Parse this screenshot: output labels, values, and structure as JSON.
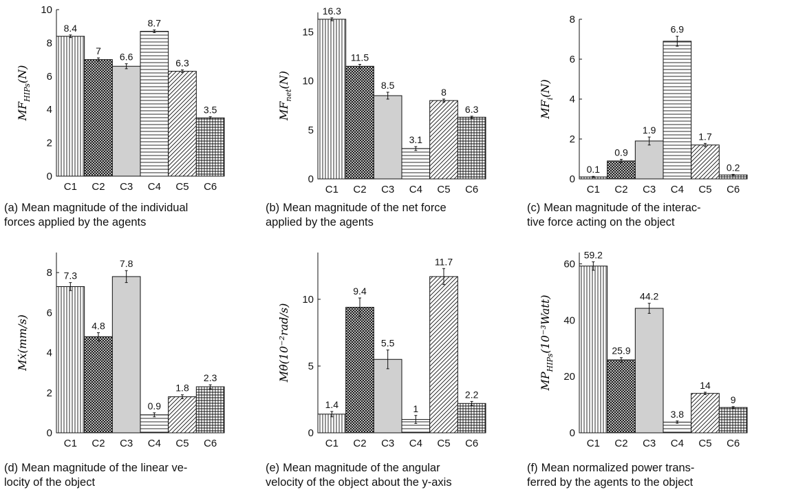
{
  "figures": [
    {
      "id": "a",
      "caption_label": "(a)",
      "caption_lines": [
        "Mean magnitude of the individual",
        "forces applied by the agents"
      ],
      "ylabel_main": "MF",
      "ylabel_sub": "HIPs",
      "ylabel_tail": "(N)"
    },
    {
      "id": "b",
      "caption_label": "(b)",
      "caption_lines": [
        "Mean magnitude of the net force",
        "applied by the agents"
      ],
      "ylabel_main": "MF",
      "ylabel_sub": "net",
      "ylabel_tail": "(N)"
    },
    {
      "id": "c",
      "caption_label": "(c)",
      "caption_lines": [
        "Mean magnitude of the interac-",
        "tive force acting on the object"
      ],
      "ylabel_main": "MF",
      "ylabel_sub": "i",
      "ylabel_tail": "(N)"
    },
    {
      "id": "d",
      "caption_label": "(d)",
      "caption_lines": [
        "Mean magnitude of the linear ve-",
        "locity of the object"
      ],
      "ylabel_main": "Mẋ(mm/s)",
      "ylabel_sub": "",
      "ylabel_tail": ""
    },
    {
      "id": "e",
      "caption_label": "(e)",
      "caption_lines": [
        "Mean magnitude of the angular",
        "velocity of the object about the y-axis"
      ],
      "ylabel_main": "Mθ̇(10⁻²rad/s)",
      "ylabel_sub": "",
      "ylabel_tail": ""
    },
    {
      "id": "f",
      "caption_label": "(f)",
      "caption_lines": [
        "Mean normalized power trans-",
        "ferred by the agents to the object"
      ],
      "ylabel_main": "MP",
      "ylabel_sub": "HIPs",
      "ylabel_tail": "(10⁻³Watt)"
    }
  ],
  "colors": {
    "gray_fill": "#d0d0d0",
    "ink": "#111111",
    "background": "#ffffff"
  },
  "patterns": [
    "vertical-lines",
    "crosshatch-dense",
    "solid-gray",
    "horizontal-lines",
    "diagonal-lines",
    "grid"
  ],
  "chart_data": [
    {
      "type": "bar",
      "categories": [
        "C1",
        "C2",
        "C3",
        "C4",
        "C5",
        "C6"
      ],
      "values": [
        8.4,
        7,
        6.6,
        8.7,
        6.3,
        3.5
      ],
      "labels": [
        "8.4",
        "7",
        "6.6",
        "8.7",
        "6.3",
        "3.5"
      ],
      "errors": [
        0.08,
        0.1,
        0.15,
        0.08,
        0.08,
        0.07
      ],
      "ylim": [
        0,
        10
      ],
      "yticks": [
        0,
        2,
        4,
        6,
        8,
        10
      ],
      "ylabel": "MF_HIPs(N)",
      "grid": false
    },
    {
      "type": "bar",
      "categories": [
        "C1",
        "C2",
        "C3",
        "C4",
        "C5",
        "C6"
      ],
      "values": [
        16.3,
        11.5,
        8.5,
        3.1,
        8,
        6.3
      ],
      "labels": [
        "16.3",
        "11.5",
        "8.5",
        "3.1",
        "8",
        "6.3"
      ],
      "errors": [
        0.15,
        0.2,
        0.35,
        0.2,
        0.15,
        0.1
      ],
      "ylim": [
        0,
        17
      ],
      "yticks": [
        0,
        5,
        10,
        15
      ],
      "ylabel": "MF_net(N)",
      "grid": false
    },
    {
      "type": "bar",
      "categories": [
        "C1",
        "C2",
        "C3",
        "C4",
        "C5",
        "C6"
      ],
      "values": [
        0.1,
        0.9,
        1.9,
        6.9,
        1.7,
        0.2
      ],
      "labels": [
        "0.1",
        "0.9",
        "1.9",
        "6.9",
        "1.7",
        "0.2"
      ],
      "errors": [
        0.03,
        0.08,
        0.2,
        0.25,
        0.08,
        0.03
      ],
      "ylim": [
        0,
        8
      ],
      "yticks": [
        0,
        2,
        4,
        6,
        8
      ],
      "ylabel": "MF_i(N)",
      "grid": false
    },
    {
      "type": "bar",
      "categories": [
        "C1",
        "C2",
        "C3",
        "C4",
        "C5",
        "C6"
      ],
      "values": [
        7.3,
        4.8,
        7.8,
        0.9,
        1.8,
        2.3
      ],
      "labels": [
        "7.3",
        "4.8",
        "7.8",
        "0.9",
        "1.8",
        "2.3"
      ],
      "errors": [
        0.2,
        0.2,
        0.3,
        0.1,
        0.1,
        0.1
      ],
      "ylim": [
        0,
        9
      ],
      "yticks": [
        0,
        2,
        4,
        6,
        8
      ],
      "ylabel": "Mẋ(mm/s)",
      "grid": false
    },
    {
      "type": "bar",
      "categories": [
        "C1",
        "C2",
        "C3",
        "C4",
        "C5",
        "C6"
      ],
      "values": [
        1.4,
        9.4,
        5.5,
        1,
        11.7,
        2.2
      ],
      "labels": [
        "1.4",
        "9.4",
        "5.5",
        "1",
        "11.7",
        "2.2"
      ],
      "errors": [
        0.2,
        0.7,
        0.7,
        0.3,
        0.6,
        0.15
      ],
      "ylim": [
        0,
        13.5
      ],
      "yticks": [
        0,
        5,
        10
      ],
      "ylabel": "Mθ̇(10⁻²rad/s)",
      "grid": false
    },
    {
      "type": "bar",
      "categories": [
        "C1",
        "C2",
        "C3",
        "C4",
        "C5",
        "C6"
      ],
      "values": [
        59.2,
        25.9,
        44.2,
        3.8,
        14,
        9
      ],
      "labels": [
        "59.2",
        "25.9",
        "44.2",
        "3.8",
        "14",
        "9"
      ],
      "errors": [
        1.5,
        0.8,
        1.8,
        0.4,
        0.4,
        0.3
      ],
      "ylim": [
        0,
        64
      ],
      "yticks": [
        0,
        20,
        40,
        60
      ],
      "ylabel": "MP_HIPs(10⁻³Watt)",
      "grid": false
    }
  ]
}
